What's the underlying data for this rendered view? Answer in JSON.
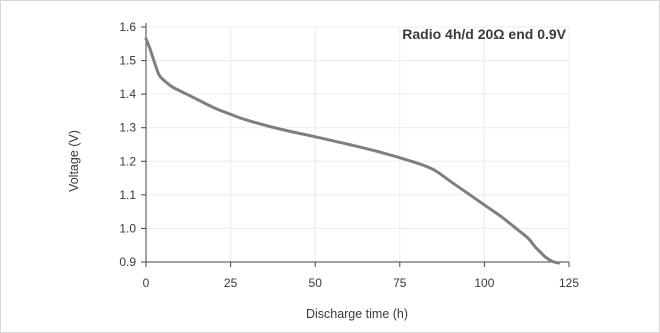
{
  "chart_data": {
    "type": "line",
    "annotation": "Radio 4h/d 20Ω end 0.9V",
    "xlabel": "Discharge time (h)",
    "ylabel": "Voltage (V)",
    "xlim": [
      0,
      125
    ],
    "ylim": [
      0.9,
      1.6
    ],
    "xticks": [
      0,
      25,
      50,
      75,
      100,
      125
    ],
    "yticks": [
      "0.9",
      "1.0",
      "1.1",
      "1.2",
      "1.3",
      "1.4",
      "1.5",
      "1.6"
    ],
    "grid": true,
    "line_color": "#7f7f7f",
    "grid_color": "#ececec",
    "series": [
      {
        "x": [
          0,
          1,
          2,
          3,
          4,
          6,
          8,
          10,
          15,
          20,
          25,
          30,
          40,
          50,
          60,
          70,
          80,
          85,
          90,
          95,
          100,
          105,
          110,
          113,
          115,
          117,
          118,
          119,
          120,
          121,
          122
        ],
        "y": [
          1.565,
          1.54,
          1.51,
          1.48,
          1.455,
          1.435,
          1.42,
          1.41,
          1.385,
          1.36,
          1.34,
          1.322,
          1.295,
          1.273,
          1.25,
          1.225,
          1.195,
          1.175,
          1.14,
          1.105,
          1.07,
          1.035,
          0.995,
          0.97,
          0.945,
          0.925,
          0.915,
          0.908,
          0.902,
          0.899,
          0.897
        ]
      }
    ]
  }
}
